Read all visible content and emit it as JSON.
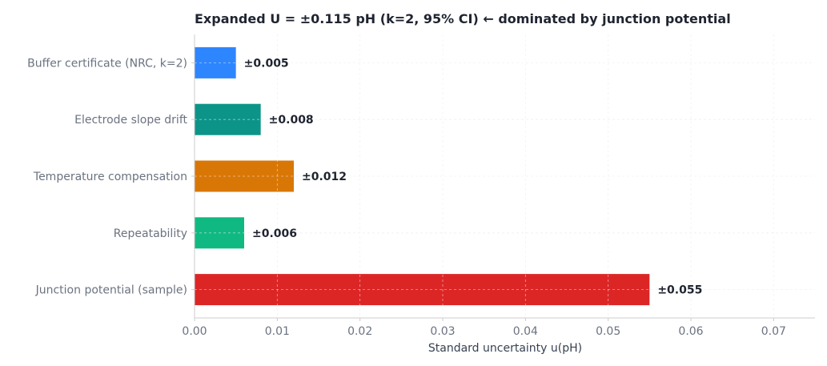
{
  "chart_data": {
    "type": "bar",
    "orientation": "horizontal",
    "title": "Expanded U = ±0.115 pH  (k=2, 95% CI)  ← dominated by junction potential",
    "xlabel": "Standard uncertainty u(pH)",
    "ylabel": "",
    "xlim": [
      0,
      0.075
    ],
    "xticks": [
      "0.00",
      "0.01",
      "0.02",
      "0.03",
      "0.04",
      "0.05",
      "0.06",
      "0.07"
    ],
    "grid": true,
    "categories": [
      "Buffer certificate (NRC, k=2)",
      "Electrode slope drift",
      "Temperature compensation",
      "Repeatability",
      "Junction potential (sample)"
    ],
    "values": [
      0.005,
      0.008,
      0.012,
      0.006,
      0.055
    ],
    "data_labels": [
      "±0.005",
      "±0.008",
      "±0.012",
      "±0.006",
      "±0.055"
    ],
    "colors": [
      "#2e86ff",
      "#0d9488",
      "#d97706",
      "#10b981",
      "#dc2626"
    ]
  }
}
